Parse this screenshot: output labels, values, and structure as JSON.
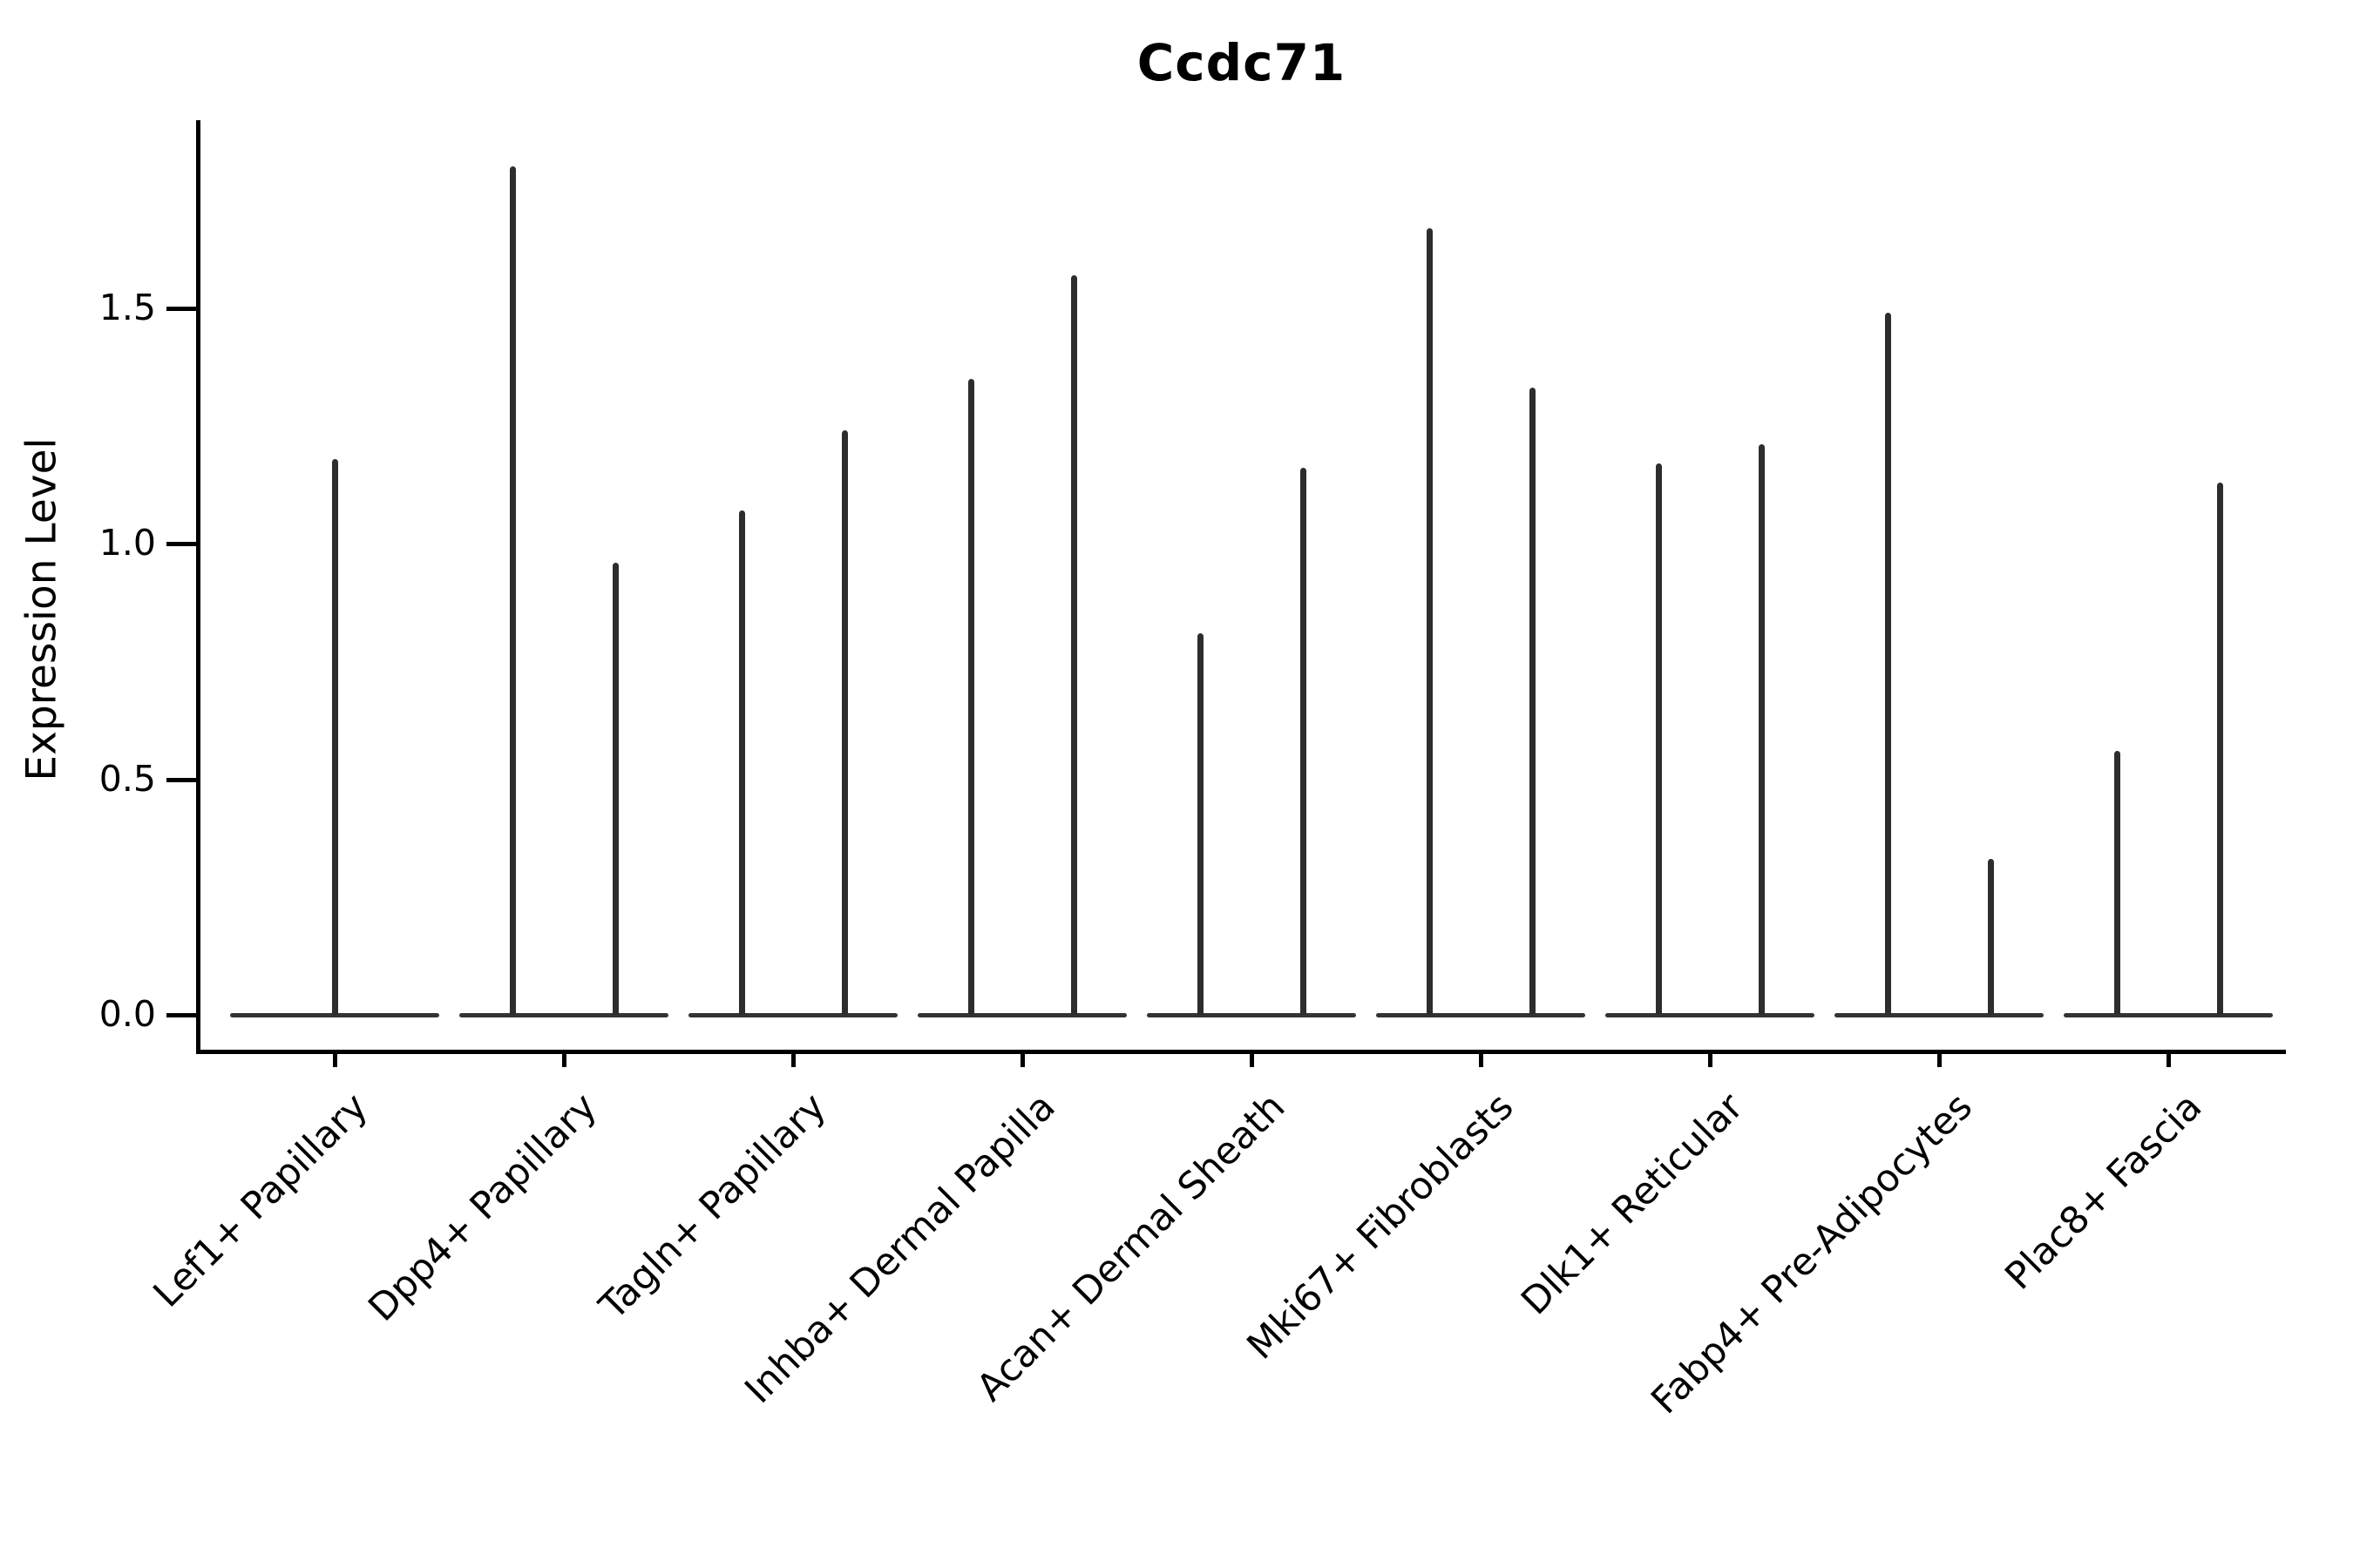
{
  "figure": {
    "background_color": "#ffffff",
    "text_color": "#000000",
    "violin_line_color": "#2d2d2d"
  },
  "chart_data": {
    "type": "violin",
    "title": "Ccdc71",
    "xlabel": "",
    "ylabel": "Expression Level",
    "ytick_labels": [
      "0.0",
      "0.5",
      "1.0",
      "1.5"
    ],
    "ytick_values": [
      0.0,
      0.5,
      1.0,
      1.5
    ],
    "ylim": [
      -0.08,
      1.9
    ],
    "grid": false,
    "legend_position": "none",
    "categories": [
      "Lef1+ Papillary",
      "Dpp4+ Papillary",
      "Tagln+ Papillary",
      "Inhba+ Dermal Papilla",
      "Acan+ Dermal Sheath",
      "Mki67+ Fibroblasts",
      "Dlk1+ Reticular",
      "Fabp4+ Pre-Adipocytes",
      "Plac8+ Fascia"
    ],
    "violins_per_category_max_expression": [
      [
        1.18
      ],
      [
        1.8,
        0.96
      ],
      [
        1.07,
        1.24
      ],
      [
        1.35,
        1.57
      ],
      [
        0.81,
        1.16
      ],
      [
        1.67,
        1.33
      ],
      [
        1.17,
        1.21
      ],
      [
        1.49,
        0.33
      ],
      [
        0.56,
        1.13
      ]
    ],
    "violin_shape_note": "Each violin is a needle-thin spike rising from a flat base at expression 0 up to its max expression value; categories with two violins show them side by side"
  }
}
